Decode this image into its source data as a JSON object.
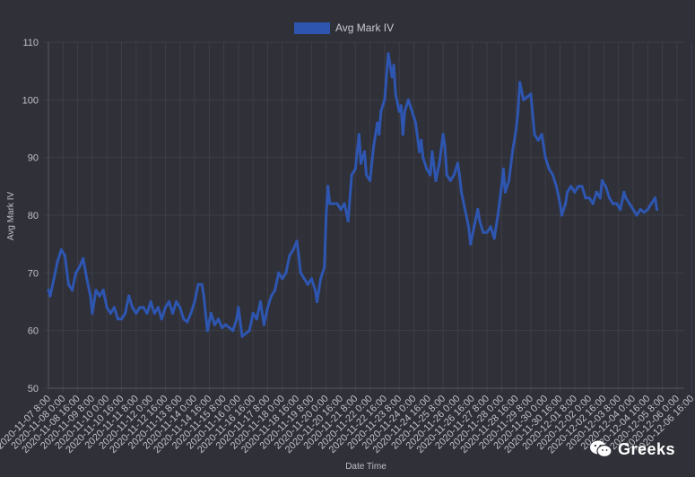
{
  "colors": {
    "background": "#2f3038",
    "series": "#2e56b0",
    "grid": "#3d3e47",
    "text": "#bfc1c8"
  },
  "watermark": {
    "text": "Greeks",
    "icon": "wechat-icon"
  },
  "chart_data": {
    "type": "line",
    "title": "",
    "xlabel": "Date Time",
    "ylabel": "Avg Mark IV",
    "ylim": [
      50,
      110
    ],
    "yticks": [
      50,
      60,
      70,
      80,
      90,
      100,
      110
    ],
    "grid": true,
    "legend": "top-center",
    "xticks": [
      "2020-11-07 8:00",
      "2020-11-08 0:00",
      "2020-11-08 16:00",
      "2020-11-09 8:00",
      "2020-11-10 0:00",
      "2020-11-10 16:00",
      "2020-11-11 8:00",
      "2020-11-12 0:00",
      "2020-11-12 16:00",
      "2020-11-13 8:00",
      "2020-11-14 0:00",
      "2020-11-14 16:00",
      "2020-11-15 8:00",
      "2020-11-16 0:00",
      "2020-11-16 16:00",
      "2020-11-17 8:00",
      "2020-11-18 0:00",
      "2020-11-18 16:00",
      "2020-11-19 8:00",
      "2020-11-20 0:00",
      "2020-11-20 16:00",
      "2020-11-21 8:00",
      "2020-11-22 0:00",
      "2020-11-22 16:00",
      "2020-11-23 8:00",
      "2020-11-24 0:00",
      "2020-11-24 16:00",
      "2020-11-25 8:00",
      "2020-11-26 0:00",
      "2020-11-26 16:00",
      "2020-11-27 8:00",
      "2020-11-28 0:00",
      "2020-11-28 16:00",
      "2020-11-29 8:00",
      "2020-11-30 0:00",
      "2020-11-30 16:00",
      "2020-12-01 8:00",
      "2020-12-02 0:00",
      "2020-12-02 16:00",
      "2020-12-03 8:00",
      "2020-12-04 0:00",
      "2020-12-04 16:00",
      "2020-12-05 8:00",
      "2020-12-06 0:00",
      "2020-12-06 16:00"
    ],
    "series": [
      {
        "name": "Avg Mark IV",
        "points": [
          [
            "2020-11-07 8:00",
            67
          ],
          [
            "2020-11-07 10:00",
            66
          ],
          [
            "2020-11-07 14:00",
            69
          ],
          [
            "2020-11-07 18:00",
            72
          ],
          [
            "2020-11-07 22:00",
            74
          ],
          [
            "2020-11-08 2:00",
            73
          ],
          [
            "2020-11-08 6:00",
            68
          ],
          [
            "2020-11-08 10:00",
            67
          ],
          [
            "2020-11-08 14:00",
            70
          ],
          [
            "2020-11-08 18:00",
            71
          ],
          [
            "2020-11-08 22:00",
            72.5
          ],
          [
            "2020-11-09 2:00",
            69
          ],
          [
            "2020-11-09 6:00",
            66
          ],
          [
            "2020-11-09 8:00",
            63
          ],
          [
            "2020-11-09 12:00",
            67
          ],
          [
            "2020-11-09 16:00",
            66
          ],
          [
            "2020-11-09 20:00",
            67
          ],
          [
            "2020-11-10 0:00",
            64
          ],
          [
            "2020-11-10 4:00",
            63
          ],
          [
            "2020-11-10 8:00",
            64
          ],
          [
            "2020-11-10 12:00",
            62
          ],
          [
            "2020-11-10 16:00",
            62
          ],
          [
            "2020-11-10 20:00",
            63
          ],
          [
            "2020-11-11 0:00",
            66
          ],
          [
            "2020-11-11 4:00",
            64
          ],
          [
            "2020-11-11 8:00",
            63
          ],
          [
            "2020-11-11 12:00",
            64
          ],
          [
            "2020-11-11 16:00",
            64
          ],
          [
            "2020-11-11 20:00",
            63
          ],
          [
            "2020-11-12 0:00",
            65
          ],
          [
            "2020-11-12 4:00",
            63
          ],
          [
            "2020-11-12 8:00",
            64
          ],
          [
            "2020-11-12 12:00",
            62
          ],
          [
            "2020-11-12 16:00",
            64
          ],
          [
            "2020-11-12 20:00",
            65
          ],
          [
            "2020-11-13 0:00",
            63
          ],
          [
            "2020-11-13 4:00",
            65
          ],
          [
            "2020-11-13 8:00",
            64
          ],
          [
            "2020-11-13 12:00",
            62
          ],
          [
            "2020-11-13 16:00",
            61.5
          ],
          [
            "2020-11-13 20:00",
            63
          ],
          [
            "2020-11-14 0:00",
            65
          ],
          [
            "2020-11-14 4:00",
            68
          ],
          [
            "2020-11-14 8:00",
            68
          ],
          [
            "2020-11-14 10:00",
            66
          ],
          [
            "2020-11-14 14:00",
            60
          ],
          [
            "2020-11-14 18:00",
            63
          ],
          [
            "2020-11-14 22:00",
            61
          ],
          [
            "2020-11-15 2:00",
            62
          ],
          [
            "2020-11-15 6:00",
            60.5
          ],
          [
            "2020-11-15 10:00",
            61
          ],
          [
            "2020-11-15 14:00",
            60.5
          ],
          [
            "2020-11-15 18:00",
            60
          ],
          [
            "2020-11-15 22:00",
            62
          ],
          [
            "2020-11-16 0:00",
            64
          ],
          [
            "2020-11-16 4:00",
            59
          ],
          [
            "2020-11-16 8:00",
            59.5
          ],
          [
            "2020-11-16 12:00",
            60
          ],
          [
            "2020-11-16 16:00",
            63
          ],
          [
            "2020-11-16 20:00",
            62
          ],
          [
            "2020-11-17 0:00",
            65
          ],
          [
            "2020-11-17 4:00",
            61
          ],
          [
            "2020-11-17 8:00",
            64
          ],
          [
            "2020-11-17 12:00",
            66
          ],
          [
            "2020-11-17 16:00",
            67
          ],
          [
            "2020-11-17 20:00",
            70
          ],
          [
            "2020-11-18 0:00",
            69
          ],
          [
            "2020-11-18 4:00",
            70
          ],
          [
            "2020-11-18 8:00",
            73
          ],
          [
            "2020-11-18 12:00",
            74
          ],
          [
            "2020-11-18 16:00",
            75.5
          ],
          [
            "2020-11-18 18:00",
            73
          ],
          [
            "2020-11-18 20:00",
            70
          ],
          [
            "2020-11-19 0:00",
            69
          ],
          [
            "2020-11-19 4:00",
            68
          ],
          [
            "2020-11-19 8:00",
            69
          ],
          [
            "2020-11-19 12:00",
            67
          ],
          [
            "2020-11-19 14:00",
            65
          ],
          [
            "2020-11-19 18:00",
            69
          ],
          [
            "2020-11-19 22:00",
            71
          ],
          [
            "2020-11-20 0:00",
            80
          ],
          [
            "2020-11-20 2:00",
            85
          ],
          [
            "2020-11-20 4:00",
            82
          ],
          [
            "2020-11-20 8:00",
            82
          ],
          [
            "2020-11-20 12:00",
            82
          ],
          [
            "2020-11-20 16:00",
            81
          ],
          [
            "2020-11-20 20:00",
            82
          ],
          [
            "2020-11-21 0:00",
            79
          ],
          [
            "2020-11-21 4:00",
            87
          ],
          [
            "2020-11-21 8:00",
            88
          ],
          [
            "2020-11-21 10:00",
            91
          ],
          [
            "2020-11-21 12:00",
            94
          ],
          [
            "2020-11-21 14:00",
            89
          ],
          [
            "2020-11-21 18:00",
            91
          ],
          [
            "2020-11-21 20:00",
            87
          ],
          [
            "2020-11-22 0:00",
            86
          ],
          [
            "2020-11-22 4:00",
            92
          ],
          [
            "2020-11-22 8:00",
            96
          ],
          [
            "2020-11-22 10:00",
            94
          ],
          [
            "2020-11-22 12:00",
            98
          ],
          [
            "2020-11-22 16:00",
            100
          ],
          [
            "2020-11-22 18:00",
            104
          ],
          [
            "2020-11-22 20:00",
            108
          ],
          [
            "2020-11-23 0:00",
            104
          ],
          [
            "2020-11-23 2:00",
            106
          ],
          [
            "2020-11-23 4:00",
            101
          ],
          [
            "2020-11-23 8:00",
            98
          ],
          [
            "2020-11-23 10:00",
            99
          ],
          [
            "2020-11-23 12:00",
            94
          ],
          [
            "2020-11-23 14:00",
            98
          ],
          [
            "2020-11-23 18:00",
            100
          ],
          [
            "2020-11-23 20:00",
            99
          ],
          [
            "2020-11-24 0:00",
            97
          ],
          [
            "2020-11-24 2:00",
            96
          ],
          [
            "2020-11-24 6:00",
            91
          ],
          [
            "2020-11-24 8:00",
            93
          ],
          [
            "2020-11-24 10:00",
            90
          ],
          [
            "2020-11-24 14:00",
            88
          ],
          [
            "2020-11-24 18:00",
            87
          ],
          [
            "2020-11-24 20:00",
            91
          ],
          [
            "2020-11-25 0:00",
            86
          ],
          [
            "2020-11-25 4:00",
            89
          ],
          [
            "2020-11-25 8:00",
            94
          ],
          [
            "2020-11-25 10:00",
            92
          ],
          [
            "2020-11-25 12:00",
            87
          ],
          [
            "2020-11-25 16:00",
            86
          ],
          [
            "2020-11-25 20:00",
            87
          ],
          [
            "2020-11-26 0:00",
            89
          ],
          [
            "2020-11-26 2:00",
            87
          ],
          [
            "2020-11-26 4:00",
            84
          ],
          [
            "2020-11-26 8:00",
            81
          ],
          [
            "2020-11-26 12:00",
            78
          ],
          [
            "2020-11-26 14:00",
            75
          ],
          [
            "2020-11-26 18:00",
            78
          ],
          [
            "2020-11-26 22:00",
            81
          ],
          [
            "2020-11-27 0:00",
            79
          ],
          [
            "2020-11-27 4:00",
            77
          ],
          [
            "2020-11-27 8:00",
            77
          ],
          [
            "2020-11-27 12:00",
            78
          ],
          [
            "2020-11-27 16:00",
            76
          ],
          [
            "2020-11-27 20:00",
            80
          ],
          [
            "2020-11-28 0:00",
            85
          ],
          [
            "2020-11-28 2:00",
            88
          ],
          [
            "2020-11-28 4:00",
            84
          ],
          [
            "2020-11-28 8:00",
            86
          ],
          [
            "2020-11-28 12:00",
            91
          ],
          [
            "2020-11-28 16:00",
            95
          ],
          [
            "2020-11-28 18:00",
            98
          ],
          [
            "2020-11-28 20:00",
            103
          ],
          [
            "2020-11-29 0:00",
            100
          ],
          [
            "2020-11-29 4:00",
            100.5
          ],
          [
            "2020-11-29 8:00",
            101
          ],
          [
            "2020-11-29 12:00",
            94
          ],
          [
            "2020-11-29 16:00",
            93
          ],
          [
            "2020-11-29 20:00",
            94
          ],
          [
            "2020-11-30 0:00",
            90
          ],
          [
            "2020-11-30 4:00",
            88
          ],
          [
            "2020-11-30 8:00",
            87
          ],
          [
            "2020-11-30 12:00",
            85
          ],
          [
            "2020-11-30 16:00",
            82
          ],
          [
            "2020-11-30 18:00",
            80
          ],
          [
            "2020-11-30 22:00",
            82
          ],
          [
            "2020-12-01 0:00",
            84
          ],
          [
            "2020-12-01 4:00",
            85
          ],
          [
            "2020-12-01 8:00",
            84
          ],
          [
            "2020-12-01 12:00",
            85
          ],
          [
            "2020-12-01 16:00",
            85
          ],
          [
            "2020-12-01 20:00",
            83
          ],
          [
            "2020-12-02 0:00",
            83
          ],
          [
            "2020-12-02 4:00",
            82
          ],
          [
            "2020-12-02 8:00",
            84
          ],
          [
            "2020-12-02 12:00",
            83
          ],
          [
            "2020-12-02 14:00",
            86
          ],
          [
            "2020-12-02 18:00",
            85
          ],
          [
            "2020-12-02 22:00",
            83
          ],
          [
            "2020-12-03 2:00",
            82
          ],
          [
            "2020-12-03 6:00",
            82
          ],
          [
            "2020-12-03 10:00",
            81
          ],
          [
            "2020-12-03 14:00",
            84
          ],
          [
            "2020-12-03 16:00",
            83
          ],
          [
            "2020-12-03 20:00",
            82
          ],
          [
            "2020-12-04 0:00",
            81
          ],
          [
            "2020-12-04 4:00",
            80
          ],
          [
            "2020-12-04 8:00",
            81
          ],
          [
            "2020-12-04 12:00",
            80.5
          ],
          [
            "2020-12-04 16:00",
            81
          ],
          [
            "2020-12-04 20:00",
            82
          ],
          [
            "2020-12-05 0:00",
            83
          ],
          [
            "2020-12-05 2:00",
            81
          ]
        ]
      }
    ]
  }
}
